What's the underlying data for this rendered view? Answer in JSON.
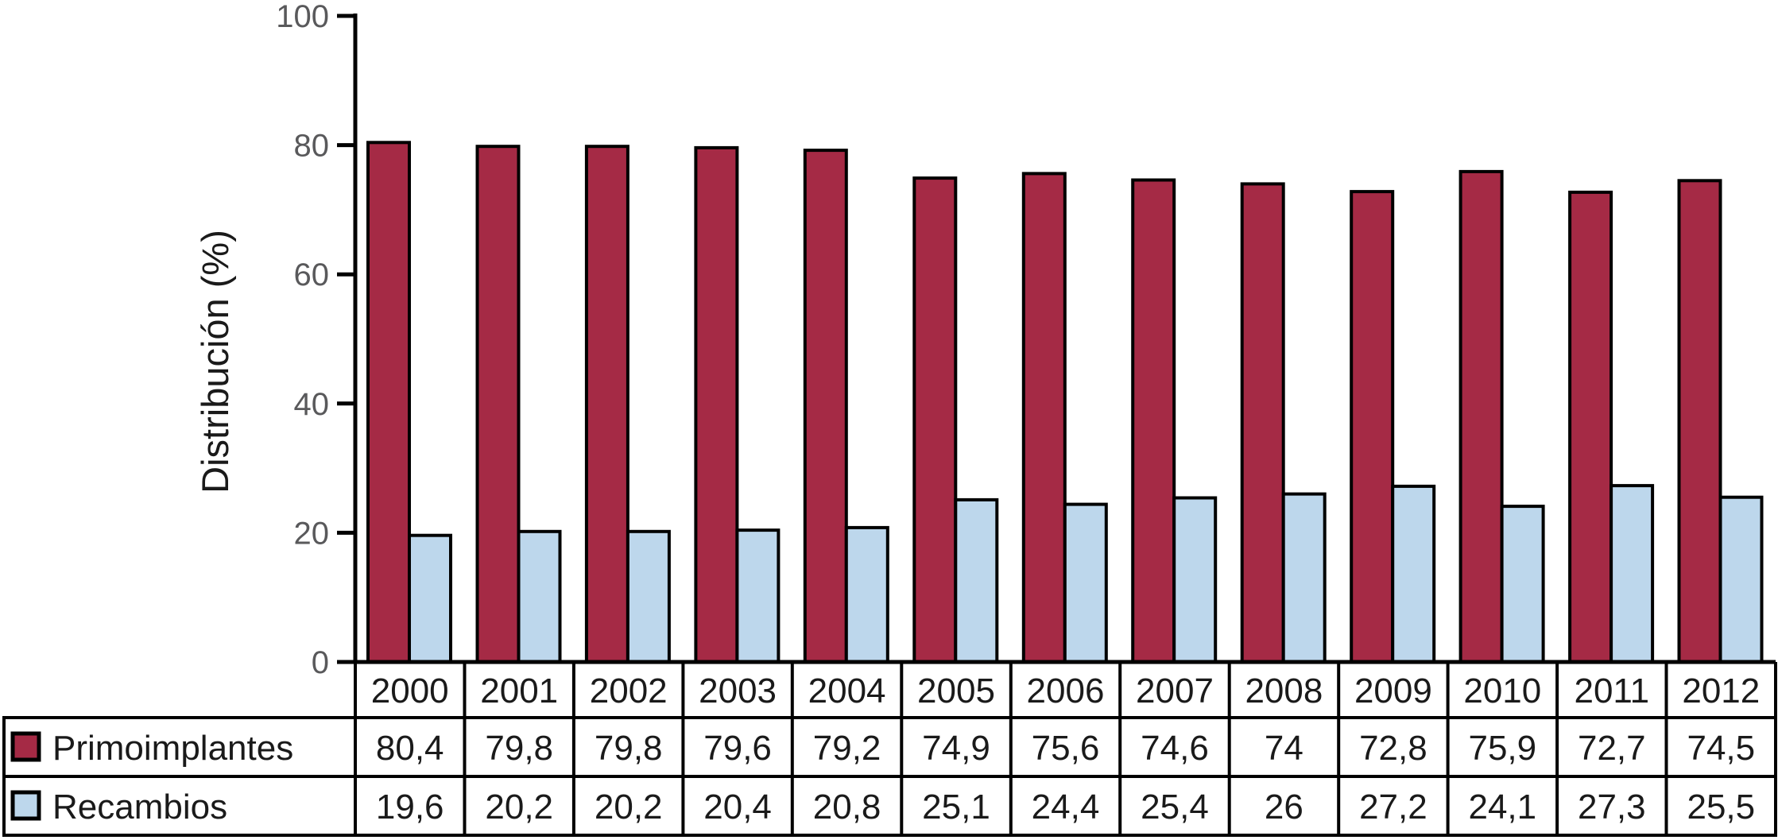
{
  "figure": {
    "background": "#ffffff"
  },
  "chart_data": {
    "type": "bar",
    "title": "",
    "xlabel": "",
    "ylabel": "Distribución (%)",
    "ylim": [
      0,
      100
    ],
    "yticks": [
      0,
      20,
      40,
      60,
      80,
      100
    ],
    "ytick_labels": [
      "0",
      "20",
      "40",
      "60",
      "80",
      "100"
    ],
    "grid": false,
    "legend_position": "table-left-column",
    "categories": [
      "2000",
      "2001",
      "2002",
      "2003",
      "2004",
      "2005",
      "2006",
      "2007",
      "2008",
      "2009",
      "2010",
      "2011",
      "2012"
    ],
    "series": [
      {
        "name": "Primoimplantes",
        "color": "#A52A45",
        "values": [
          80.4,
          79.8,
          79.8,
          79.6,
          79.2,
          74.9,
          75.6,
          74.6,
          74,
          72.8,
          75.9,
          72.7,
          74.5
        ],
        "display": [
          "80,4",
          "79,8",
          "79,8",
          "79,6",
          "79,2",
          "74,9",
          "75,6",
          "74,6",
          "74",
          "72,8",
          "75,9",
          "72,7",
          "74,5"
        ]
      },
      {
        "name": "Recambios",
        "color": "#BDD7EC",
        "values": [
          19.6,
          20.2,
          20.2,
          20.4,
          20.8,
          25.1,
          24.4,
          25.4,
          26,
          27.2,
          24.1,
          27.3,
          25.5
        ],
        "display": [
          "19,6",
          "20,2",
          "20,2",
          "20,4",
          "20,8",
          "25,1",
          "24,4",
          "25,4",
          "26",
          "27,2",
          "24,1",
          "27,3",
          "25,5"
        ]
      }
    ],
    "colors": {
      "bar_outline": "#000000",
      "axis": "#000000",
      "table_border": "#000000",
      "tick_label": "#59595B",
      "text": "#1A1A1A"
    }
  }
}
